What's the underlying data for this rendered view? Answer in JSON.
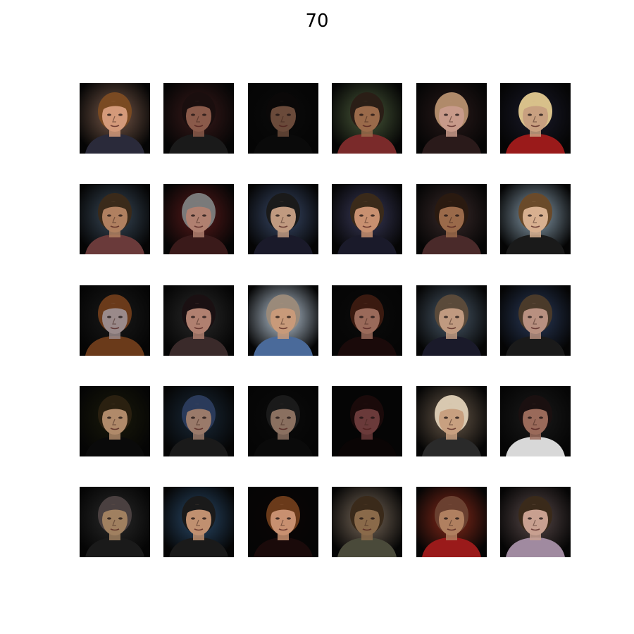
{
  "title": "70",
  "grid": {
    "rows": 5,
    "cols": 6,
    "tiles": [
      {
        "bg": "#7a5a4a",
        "skin": "#d49a7a",
        "hair": "#7a4a22",
        "clothes": "#2a2a3a"
      },
      {
        "bg": "#3a1a1a",
        "skin": "#8a5a4a",
        "hair": "#1a0e0e",
        "clothes": "#1a1a1a"
      },
      {
        "bg": "#0a0a0a",
        "skin": "#6a4a3a",
        "hair": "#0a0808",
        "clothes": "#0a0a0a"
      },
      {
        "bg": "#4a5a3a",
        "skin": "#9a6a4a",
        "hair": "#2a1e16",
        "clothes": "#7a2a2a"
      },
      {
        "bg": "#2a1a1a",
        "skin": "#c89a8a",
        "hair": "#b08a6a",
        "clothes": "#2a1a1a"
      },
      {
        "bg": "#1a1a2a",
        "skin": "#c8a080",
        "hair": "#d8c08a",
        "clothes": "#9a1a1a"
      },
      {
        "bg": "#3a4a5a",
        "skin": "#b08060",
        "hair": "#3a2a1a",
        "clothes": "#6a3a3a"
      },
      {
        "bg": "#5a1a1a",
        "skin": "#b08070",
        "hair": "#7a7a7a",
        "clothes": "#3a1a1a"
      },
      {
        "bg": "#3a4a6a",
        "skin": "#c09a80",
        "hair": "#1a1a1a",
        "clothes": "#1a1a2a"
      },
      {
        "bg": "#3a3a5a",
        "skin": "#c89070",
        "hair": "#3a2a1a",
        "clothes": "#1a1a2a"
      },
      {
        "bg": "#3a2a2a",
        "skin": "#9a6a4a",
        "hair": "#2a1a10",
        "clothes": "#4a2a2a"
      },
      {
        "bg": "#8aa0b0",
        "skin": "#d8b090",
        "hair": "#6a4a2a",
        "clothes": "#1a1a1a"
      },
      {
        "bg": "#1a1a1a",
        "skin": "#9a8a8a",
        "hair": "#6a3a1a",
        "clothes": "#6a3a1a"
      },
      {
        "bg": "#2a2a2a",
        "skin": "#b08070",
        "hair": "#1a1012",
        "clothes": "#3a2a2a"
      },
      {
        "bg": "#c0d0e0",
        "skin": "#c89a7a",
        "hair": "#9a8a7a",
        "clothes": "#4a6a9a"
      },
      {
        "bg": "#0a0a0a",
        "skin": "#9a6a5a",
        "hair": "#3a1a10",
        "clothes": "#1a0a0a"
      },
      {
        "bg": "#4a5a6a",
        "skin": "#c09a80",
        "hair": "#5a4a3a",
        "clothes": "#1a1a2a"
      },
      {
        "bg": "#2a3a5a",
        "skin": "#b89080",
        "hair": "#4a3a2a",
        "clothes": "#1a1a1a"
      },
      {
        "bg": "#1a1a0a",
        "skin": "#b08a6a",
        "hair": "#2a2010",
        "clothes": "#0a0a0a"
      },
      {
        "bg": "#1a2a3a",
        "skin": "#9a7a6a",
        "hair": "#2a3a5a",
        "clothes": "#1a1a1a"
      },
      {
        "bg": "#0a0a0a",
        "skin": "#8a7060",
        "hair": "#1a1a1a",
        "clothes": "#0a0a0a"
      },
      {
        "bg": "#050505",
        "skin": "#6a3a3a",
        "hair": "#1a0a0a",
        "clothes": "#0a0505"
      },
      {
        "bg": "#6a5a4a",
        "skin": "#c8a080",
        "hair": "#d8c8b0",
        "clothes": "#2a2a2a"
      },
      {
        "bg": "#1a1a1a",
        "skin": "#9a6a5a",
        "hair": "#1a1010",
        "clothes": "#d8d8d8"
      },
      {
        "bg": "#2a2a2a",
        "skin": "#a08060",
        "hair": "#4a4040",
        "clothes": "#1a1a1a"
      },
      {
        "bg": "#2a4a6a",
        "skin": "#c09070",
        "hair": "#1a1a1a",
        "clothes": "#1a1a1a"
      },
      {
        "bg": "#0a0505",
        "skin": "#c89070",
        "hair": "#6a3a1a",
        "clothes": "#1a0a0a"
      },
      {
        "bg": "#7a6a5a",
        "skin": "#8a6a4a",
        "hair": "#3a2a1a",
        "clothes": "#4a4a3a"
      },
      {
        "bg": "#8a2a1a",
        "skin": "#b08060",
        "hair": "#6a4030",
        "clothes": "#9a1a1a"
      },
      {
        "bg": "#5a4a4a",
        "skin": "#c8a090",
        "hair": "#3a2a1a",
        "clothes": "#a08aa0"
      }
    ]
  }
}
